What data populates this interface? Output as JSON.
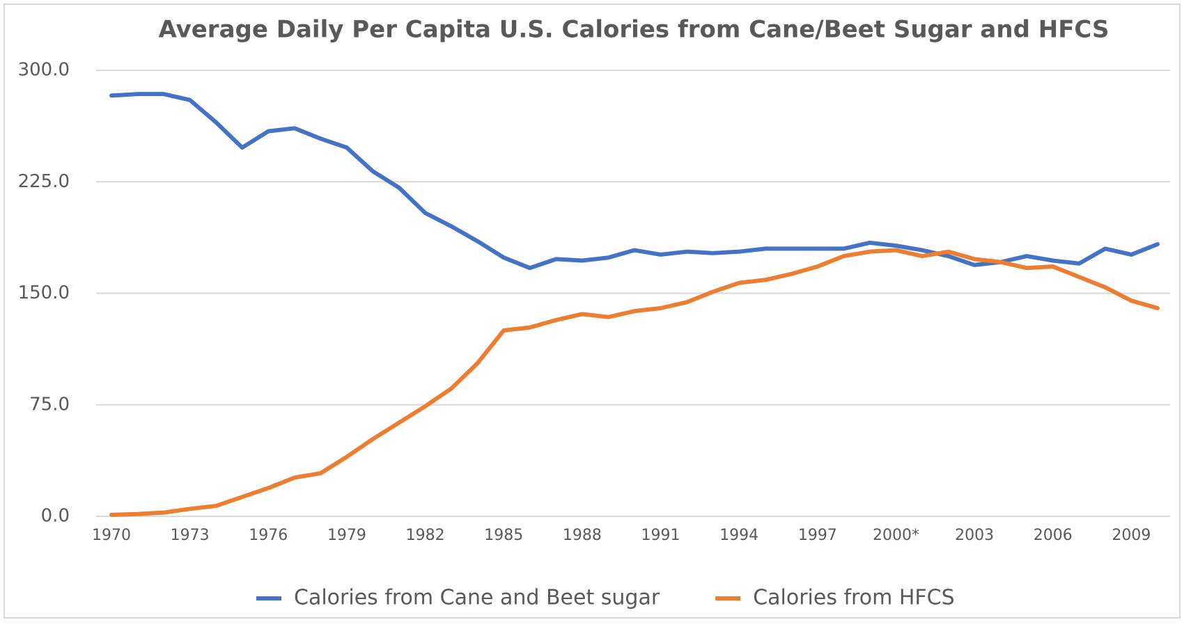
{
  "chart_data": {
    "type": "line",
    "title": "Average Daily Per Capita U.S. Calories from Cane/Beet Sugar and HFCS",
    "categories": [
      "1970",
      null,
      null,
      "1973",
      null,
      null,
      "1976",
      null,
      null,
      "1979",
      null,
      null,
      "1982",
      null,
      null,
      "1985",
      null,
      null,
      "1988",
      null,
      null,
      "1991",
      null,
      null,
      "1994",
      null,
      null,
      "1997",
      null,
      null,
      "2000*",
      null,
      null,
      "2003",
      null,
      null,
      "2006",
      null,
      null,
      "2009",
      null
    ],
    "series": [
      {
        "name": "Calories from Cane and Beet sugar",
        "color": "#4472c4",
        "values": [
          283,
          284,
          284,
          280,
          265,
          248,
          259,
          261,
          254,
          248,
          232,
          221,
          204,
          195,
          185,
          174,
          167,
          173,
          172,
          174,
          179,
          176,
          178,
          177,
          178,
          180,
          180,
          180,
          180,
          184,
          182,
          179,
          175,
          169,
          171,
          175,
          172,
          170,
          180,
          176,
          183
        ]
      },
      {
        "name": "Calories from HFCS",
        "color": "#ed7d31",
        "values": [
          1,
          1.5,
          2.5,
          5,
          7,
          13,
          19,
          26,
          29,
          40,
          52,
          63,
          74,
          86,
          103,
          125,
          127,
          132,
          136,
          134,
          138,
          140,
          144,
          151,
          157,
          159,
          163,
          168,
          175,
          178,
          179,
          175,
          178,
          173,
          171,
          167,
          168,
          161,
          154,
          145,
          140
        ]
      }
    ],
    "ylim": [
      0,
      300
    ],
    "yticks": [
      {
        "value": 0,
        "label": "0.0"
      },
      {
        "value": 75,
        "label": "75.0"
      },
      {
        "value": 150,
        "label": "150.0"
      },
      {
        "value": 225,
        "label": "225.0"
      },
      {
        "value": 300,
        "label": "300.0"
      }
    ],
    "grid": true
  }
}
